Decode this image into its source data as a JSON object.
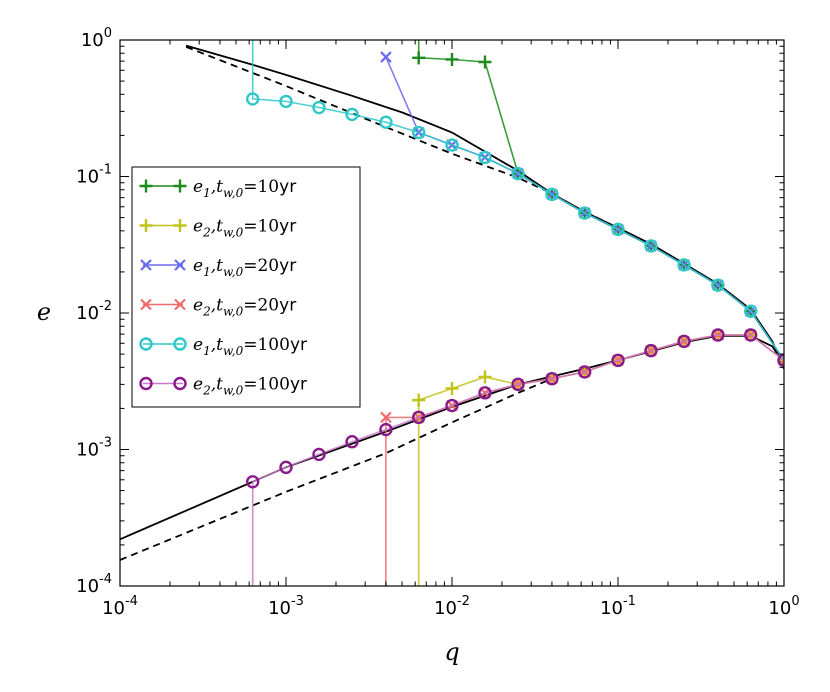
{
  "chart_data": {
    "type": "line",
    "xscale": "log",
    "yscale": "log",
    "xlabel": "q",
    "ylabel": "e",
    "xlim": [
      0.0001,
      1
    ],
    "ylim": [
      0.0001,
      1
    ],
    "xticks": [
      {
        "base": "10",
        "exp": "-4",
        "value": 0.0001
      },
      {
        "base": "10",
        "exp": "-3",
        "value": 0.001
      },
      {
        "base": "10",
        "exp": "-2",
        "value": 0.01
      },
      {
        "base": "10",
        "exp": "-1",
        "value": 0.1
      },
      {
        "base": "10",
        "exp": "0",
        "value": 1
      }
    ],
    "yticks": [
      {
        "base": "10",
        "exp": "-4",
        "value": 0.0001
      },
      {
        "base": "10",
        "exp": "-3",
        "value": 0.001
      },
      {
        "base": "10",
        "exp": "-2",
        "value": 0.01
      },
      {
        "base": "10",
        "exp": "-1",
        "value": 0.1
      },
      {
        "base": "10",
        "exp": "0",
        "value": 1
      }
    ],
    "legend_position": "center-left",
    "reference_lines": [
      {
        "name": "analytic-solid-upper",
        "style": "solid",
        "color": "#000000",
        "x": [
          0.00025,
          0.0006,
          0.001,
          0.0025,
          0.005,
          0.01,
          0.025,
          0.04,
          0.063,
          0.1,
          0.158,
          0.25,
          0.4,
          0.63,
          0.85,
          1.0
        ],
        "y": [
          0.91,
          0.67,
          0.555,
          0.39,
          0.295,
          0.21,
          0.11,
          0.075,
          0.055,
          0.042,
          0.032,
          0.023,
          0.0163,
          0.0106,
          0.0062,
          0.0039
        ]
      },
      {
        "name": "analytic-dashed-upper",
        "style": "dashed",
        "color": "#000000",
        "x": [
          0.00025,
          0.001,
          0.004,
          0.01,
          0.025,
          0.04,
          0.063,
          0.1
        ],
        "y": [
          0.89,
          0.46,
          0.23,
          0.147,
          0.098,
          0.075,
          0.055,
          0.042
        ]
      },
      {
        "name": "analytic-solid-lower",
        "style": "solid",
        "color": "#000000",
        "x": [
          0.0001,
          0.001,
          0.004,
          0.01,
          0.025,
          0.063,
          0.1,
          0.25,
          0.4,
          0.63,
          0.85,
          1.0
        ],
        "y": [
          0.00022,
          0.00074,
          0.00135,
          0.00205,
          0.003,
          0.0039,
          0.0045,
          0.0061,
          0.0068,
          0.0068,
          0.0057,
          0.0042
        ]
      },
      {
        "name": "analytic-dashed-lower",
        "style": "dashed",
        "color": "#000000",
        "x": [
          0.0001,
          0.001,
          0.004,
          0.01,
          0.025,
          0.04
        ],
        "y": [
          0.000155,
          0.00049,
          0.00094,
          0.00158,
          0.0026,
          0.0033
        ]
      }
    ],
    "series": [
      {
        "name": "e1,tw0=10yr",
        "label_main": "e",
        "label_sub": "1",
        "label_tw": "t",
        "label_tw_sub": "w,0",
        "label_eq": "=10",
        "label_unit": "yr",
        "color": "#1a8a1a",
        "marker": "plus",
        "marker_stride": 1,
        "connect": true,
        "x": [
          0.0063,
          0.0063,
          0.01,
          0.0158,
          0.025,
          0.04,
          0.063,
          0.1,
          0.158,
          0.25,
          0.4,
          0.63,
          1.0
        ],
        "y": [
          1.0,
          0.74,
          0.72,
          0.69,
          0.105,
          0.074,
          0.054,
          0.041,
          0.031,
          0.0225,
          0.016,
          0.0103,
          0.0045
        ],
        "marker_mask": [
          false,
          true,
          true,
          true,
          true,
          true,
          true,
          true,
          true,
          true,
          true,
          true,
          true
        ]
      },
      {
        "name": "e2,tw0=10yr",
        "label_main": "e",
        "label_sub": "2",
        "label_tw": "t",
        "label_tw_sub": "w,0",
        "label_eq": "=10",
        "label_unit": "yr",
        "color": "#c2c21a",
        "marker": "plus",
        "connect": true,
        "x": [
          0.0063,
          0.0063,
          0.01,
          0.0158,
          0.025,
          0.04,
          0.063,
          0.1,
          0.158,
          0.25,
          0.4,
          0.63,
          1.0
        ],
        "y": [
          0.0001,
          0.0023,
          0.0028,
          0.0034,
          0.003,
          0.0033,
          0.0037,
          0.0045,
          0.0053,
          0.0062,
          0.0069,
          0.0069,
          0.0045
        ],
        "marker_mask": [
          false,
          true,
          true,
          true,
          true,
          true,
          true,
          true,
          true,
          true,
          true,
          true,
          true
        ]
      },
      {
        "name": "e1,tw0=20yr",
        "label_main": "e",
        "label_sub": "1",
        "label_tw": "t",
        "label_tw_sub": "w,0",
        "label_eq": "=20",
        "label_unit": "yr",
        "color": "#6a6af0",
        "marker": "x",
        "connect": true,
        "x": [
          0.004,
          0.0063,
          0.01,
          0.0158,
          0.025,
          0.04,
          0.063,
          0.1,
          0.158,
          0.25,
          0.4,
          0.63,
          1.0
        ],
        "y": [
          0.75,
          0.21,
          0.17,
          0.138,
          0.105,
          0.074,
          0.054,
          0.041,
          0.031,
          0.0225,
          0.016,
          0.0103,
          0.0045
        ],
        "marker_mask": [
          true,
          true,
          true,
          true,
          true,
          true,
          true,
          true,
          true,
          true,
          true,
          true,
          true
        ]
      },
      {
        "name": "e2,tw0=20yr",
        "label_main": "e",
        "label_sub": "2",
        "label_tw": "t",
        "label_tw_sub": "w,0",
        "label_eq": "=20",
        "label_unit": "yr",
        "color": "#f06a6a",
        "marker": "x",
        "connect": true,
        "x": [
          0.004,
          0.004,
          0.0063,
          0.01,
          0.0158,
          0.025,
          0.04,
          0.063,
          0.1,
          0.158,
          0.25,
          0.4,
          0.63,
          1.0
        ],
        "y": [
          0.0001,
          0.00172,
          0.00172,
          0.0021,
          0.0026,
          0.003,
          0.0033,
          0.0037,
          0.0045,
          0.0053,
          0.0062,
          0.0069,
          0.0069,
          0.0045
        ],
        "marker_mask": [
          false,
          true,
          true,
          true,
          true,
          true,
          true,
          true,
          true,
          true,
          true,
          true,
          true,
          true
        ]
      },
      {
        "name": "e1,tw0=100yr",
        "label_main": "e",
        "label_sub": "1",
        "label_tw": "t",
        "label_tw_sub": "w,0",
        "label_eq": "=100",
        "label_unit": "yr",
        "color": "#2ec8c8",
        "marker": "circle",
        "connect": true,
        "x": [
          0.00063,
          0.00063,
          0.001,
          0.00158,
          0.0025,
          0.004,
          0.0063,
          0.01,
          0.0158,
          0.025,
          0.04,
          0.063,
          0.1,
          0.158,
          0.25,
          0.4,
          0.63,
          1.0
        ],
        "y": [
          1.0,
          0.37,
          0.355,
          0.32,
          0.285,
          0.25,
          0.21,
          0.17,
          0.138,
          0.105,
          0.074,
          0.054,
          0.041,
          0.031,
          0.0225,
          0.016,
          0.0103,
          0.0045
        ],
        "marker_mask": [
          false,
          true,
          true,
          true,
          true,
          true,
          true,
          true,
          true,
          true,
          true,
          true,
          true,
          true,
          true,
          true,
          true,
          true
        ]
      },
      {
        "name": "e2,tw0=100yr",
        "label_main": "e",
        "label_sub": "2",
        "label_tw": "t",
        "label_tw_sub": "w,0",
        "label_eq": "=100",
        "label_unit": "yr",
        "color": "#8a1a8a",
        "marker": "circle",
        "connect": true,
        "line_color": "#c878c8",
        "x": [
          0.00063,
          0.00063,
          0.001,
          0.00158,
          0.0025,
          0.004,
          0.0063,
          0.01,
          0.0158,
          0.025,
          0.04,
          0.063,
          0.1,
          0.158,
          0.25,
          0.4,
          0.63,
          1.0
        ],
        "y": [
          0.0001,
          0.00058,
          0.00074,
          0.00092,
          0.00114,
          0.0014,
          0.00172,
          0.0021,
          0.0026,
          0.003,
          0.0033,
          0.0037,
          0.0045,
          0.0053,
          0.0062,
          0.0069,
          0.0069,
          0.0045
        ],
        "marker_mask": [
          false,
          true,
          true,
          true,
          true,
          true,
          true,
          true,
          true,
          true,
          true,
          true,
          true,
          true,
          true,
          true,
          true,
          true
        ]
      }
    ]
  }
}
